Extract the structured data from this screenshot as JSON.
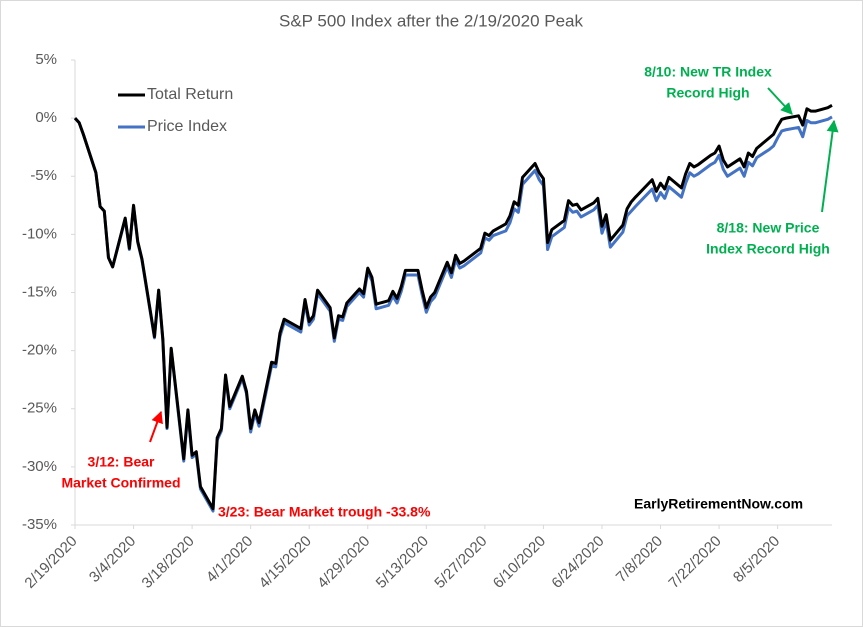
{
  "chart_data": {
    "type": "line",
    "title": "S&P 500 Index after the 2/19/2020 Peak",
    "x": [
      "2020-02-19",
      "2020-02-20",
      "2020-02-21",
      "2020-02-24",
      "2020-02-25",
      "2020-02-26",
      "2020-02-27",
      "2020-02-28",
      "2020-03-02",
      "2020-03-03",
      "2020-03-04",
      "2020-03-05",
      "2020-03-06",
      "2020-03-09",
      "2020-03-10",
      "2020-03-11",
      "2020-03-12",
      "2020-03-13",
      "2020-03-16",
      "2020-03-17",
      "2020-03-18",
      "2020-03-19",
      "2020-03-20",
      "2020-03-23",
      "2020-03-24",
      "2020-03-25",
      "2020-03-26",
      "2020-03-27",
      "2020-03-30",
      "2020-03-31",
      "2020-04-01",
      "2020-04-02",
      "2020-04-03",
      "2020-04-06",
      "2020-04-07",
      "2020-04-08",
      "2020-04-09",
      "2020-04-13",
      "2020-04-14",
      "2020-04-15",
      "2020-04-16",
      "2020-04-17",
      "2020-04-20",
      "2020-04-21",
      "2020-04-22",
      "2020-04-23",
      "2020-04-24",
      "2020-04-27",
      "2020-04-28",
      "2020-04-29",
      "2020-04-30",
      "2020-05-01",
      "2020-05-04",
      "2020-05-05",
      "2020-05-06",
      "2020-05-07",
      "2020-05-08",
      "2020-05-11",
      "2020-05-12",
      "2020-05-13",
      "2020-05-14",
      "2020-05-15",
      "2020-05-18",
      "2020-05-19",
      "2020-05-20",
      "2020-05-21",
      "2020-05-22",
      "2020-05-26",
      "2020-05-27",
      "2020-05-28",
      "2020-05-29",
      "2020-06-01",
      "2020-06-02",
      "2020-06-03",
      "2020-06-04",
      "2020-06-05",
      "2020-06-08",
      "2020-06-09",
      "2020-06-10",
      "2020-06-11",
      "2020-06-12",
      "2020-06-15",
      "2020-06-16",
      "2020-06-17",
      "2020-06-18",
      "2020-06-19",
      "2020-06-22",
      "2020-06-23",
      "2020-06-24",
      "2020-06-25",
      "2020-06-26",
      "2020-06-29",
      "2020-06-30",
      "2020-07-01",
      "2020-07-02",
      "2020-07-06",
      "2020-07-07",
      "2020-07-08",
      "2020-07-09",
      "2020-07-10",
      "2020-07-13",
      "2020-07-14",
      "2020-07-15",
      "2020-07-16",
      "2020-07-17",
      "2020-07-20",
      "2020-07-21",
      "2020-07-22",
      "2020-07-23",
      "2020-07-24",
      "2020-07-27",
      "2020-07-28",
      "2020-07-29",
      "2020-07-30",
      "2020-07-31",
      "2020-08-03",
      "2020-08-04",
      "2020-08-05",
      "2020-08-06",
      "2020-08-07",
      "2020-08-10",
      "2020-08-11",
      "2020-08-12",
      "2020-08-13",
      "2020-08-14",
      "2020-08-17",
      "2020-08-18"
    ],
    "series": [
      {
        "name": "Total Return",
        "color": "#000000",
        "values": [
          0,
          -0.4,
          -1.4,
          -4.7,
          -7.6,
          -8.0,
          -12.0,
          -12.8,
          -8.6,
          -11.2,
          -7.5,
          -10.6,
          -12.1,
          -18.8,
          -14.8,
          -19.0,
          -26.6,
          -19.8,
          -29.3,
          -25.1,
          -29.0,
          -28.7,
          -31.7,
          -33.6,
          -27.5,
          -26.7,
          -22.1,
          -24.8,
          -22.2,
          -23.5,
          -26.7,
          -25.1,
          -26.2,
          -21.0,
          -21.1,
          -18.5,
          -17.3,
          -18.1,
          -15.6,
          -17.5,
          -17.0,
          -14.8,
          -16.3,
          -18.9,
          -17.0,
          -17.1,
          -15.9,
          -14.7,
          -15.1,
          -12.9,
          -13.7,
          -16.0,
          -15.7,
          -14.9,
          -15.5,
          -14.5,
          -13.1,
          -13.1,
          -14.8,
          -16.3,
          -15.4,
          -15.0,
          -12.4,
          -13.3,
          -11.8,
          -12.5,
          -12.3,
          -11.2,
          -9.9,
          -10.1,
          -9.7,
          -9.1,
          -8.4,
          -7.2,
          -7.5,
          -5.1,
          -3.9,
          -4.7,
          -5.2,
          -10.7,
          -9.6,
          -8.8,
          -7.1,
          -7.5,
          -7.4,
          -7.9,
          -7.3,
          -6.9,
          -9.3,
          -8.3,
          -10.5,
          -9.2,
          -7.8,
          -7.2,
          -6.8,
          -5.3,
          -6.3,
          -5.6,
          -6.1,
          -5.1,
          -6.0,
          -4.8,
          -3.9,
          -4.2,
          -4.0,
          -3.2,
          -3.0,
          -2.4,
          -3.6,
          -4.2,
          -3.5,
          -4.2,
          -3.0,
          -3.3,
          -2.6,
          -1.7,
          -1.4,
          -0.7,
          -0.1,
          0.0,
          0.2,
          -0.6,
          0.8,
          0.6,
          0.6,
          0.9,
          1.1
        ]
      },
      {
        "name": "Price Index",
        "color": "#4472c4",
        "values": [
          0,
          -0.4,
          -1.4,
          -4.7,
          -7.6,
          -8.0,
          -12.0,
          -12.8,
          -8.7,
          -11.3,
          -7.6,
          -10.7,
          -12.2,
          -18.9,
          -14.9,
          -19.1,
          -26.7,
          -19.9,
          -29.5,
          -25.3,
          -29.2,
          -28.9,
          -31.9,
          -33.8,
          -27.7,
          -26.9,
          -22.3,
          -25.0,
          -22.4,
          -23.7,
          -27.0,
          -25.4,
          -26.5,
          -21.3,
          -21.4,
          -18.8,
          -17.6,
          -18.4,
          -15.9,
          -17.8,
          -17.3,
          -15.1,
          -16.6,
          -19.2,
          -17.3,
          -17.4,
          -16.2,
          -15.0,
          -15.4,
          -13.2,
          -14.0,
          -16.4,
          -16.1,
          -15.3,
          -15.9,
          -14.9,
          -13.5,
          -13.5,
          -15.2,
          -16.7,
          -15.8,
          -15.4,
          -12.8,
          -13.7,
          -12.2,
          -12.9,
          -12.7,
          -11.6,
          -10.3,
          -10.5,
          -10.1,
          -9.7,
          -9.0,
          -7.8,
          -8.1,
          -5.7,
          -4.5,
          -5.3,
          -5.8,
          -11.3,
          -10.2,
          -9.4,
          -7.7,
          -8.1,
          -8.0,
          -8.5,
          -7.9,
          -7.5,
          -9.9,
          -8.9,
          -11.1,
          -9.8,
          -8.4,
          -8.0,
          -7.6,
          -6.1,
          -7.1,
          -6.4,
          -6.9,
          -5.9,
          -6.8,
          -5.6,
          -4.7,
          -5.0,
          -4.8,
          -4.0,
          -3.8,
          -3.2,
          -4.4,
          -5.0,
          -4.3,
          -5.0,
          -3.8,
          -4.1,
          -3.4,
          -2.7,
          -2.4,
          -1.7,
          -1.1,
          -1.0,
          -0.8,
          -1.6,
          -0.2,
          -0.4,
          -0.4,
          -0.1,
          0.1
        ]
      }
    ],
    "xlim": [
      "2020-02-19",
      "2020-08-18"
    ],
    "xticks": [
      {
        "value": "2020-02-19",
        "label": "2/19/2020"
      },
      {
        "value": "2020-03-04",
        "label": "3/4/2020"
      },
      {
        "value": "2020-03-18",
        "label": "3/18/2020"
      },
      {
        "value": "2020-04-01",
        "label": "4/1/2020"
      },
      {
        "value": "2020-04-15",
        "label": "4/15/2020"
      },
      {
        "value": "2020-04-29",
        "label": "4/29/2020"
      },
      {
        "value": "2020-05-13",
        "label": "5/13/2020"
      },
      {
        "value": "2020-05-27",
        "label": "5/27/2020"
      },
      {
        "value": "2020-06-10",
        "label": "6/10/2020"
      },
      {
        "value": "2020-06-24",
        "label": "6/24/2020"
      },
      {
        "value": "2020-07-08",
        "label": "7/8/2020"
      },
      {
        "value": "2020-07-22",
        "label": "7/22/2020"
      },
      {
        "value": "2020-08-05",
        "label": "8/5/2020"
      }
    ],
    "ylim": [
      -35,
      5
    ],
    "yticks": [
      {
        "value": 5,
        "label": "5%"
      },
      {
        "value": 0,
        "label": "0%"
      },
      {
        "value": -5,
        "label": "-5%"
      },
      {
        "value": -10,
        "label": "-10%"
      },
      {
        "value": -15,
        "label": "-15%"
      },
      {
        "value": -20,
        "label": "-20%"
      },
      {
        "value": -25,
        "label": "-25%"
      },
      {
        "value": -30,
        "label": "-30%"
      },
      {
        "value": -35,
        "label": "-35%"
      }
    ],
    "grid": false,
    "legend": "upper left",
    "annotations": [
      {
        "lines": [
          "3/12: Bear",
          "Market Confirmed"
        ],
        "color": "#ff0000"
      },
      {
        "lines": [
          "3/23: Bear Market trough -33.8%"
        ],
        "color": "#ff0000"
      },
      {
        "lines": [
          "8/10: New TR Index",
          "Record High"
        ],
        "color": "#00b050"
      },
      {
        "lines": [
          "8/18: New Price",
          "Index Record High"
        ],
        "color": "#00b050"
      },
      {
        "lines": [
          "EarlyRetirementNow.com"
        ],
        "color": "#000000"
      }
    ]
  }
}
